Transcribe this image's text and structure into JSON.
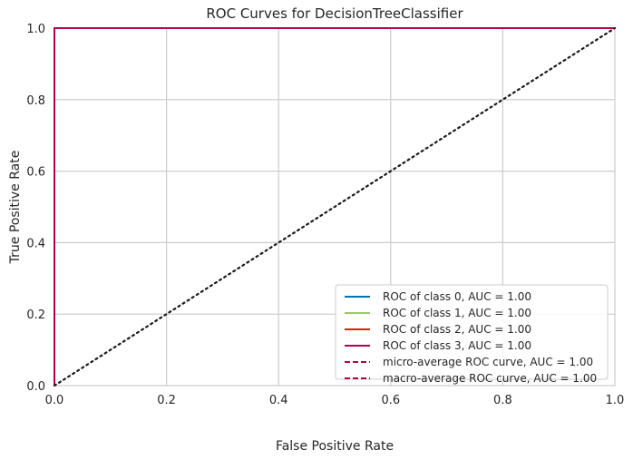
{
  "chart_data": {
    "type": "line",
    "title": "ROC Curves for DecisionTreeClassifier",
    "xlabel": "False Positive Rate",
    "ylabel": "True Positive Rate",
    "xlim": [
      0,
      1
    ],
    "ylim": [
      0,
      1
    ],
    "xticks": [
      "0.0",
      "0.2",
      "0.4",
      "0.6",
      "0.8",
      "1.0"
    ],
    "yticks": [
      "0.0",
      "0.2",
      "0.4",
      "0.6",
      "0.8",
      "1.0"
    ],
    "grid": true,
    "legend_position": "bottom-right",
    "series": [
      {
        "name": "ROC of class 0, AUC = 1.00",
        "color": "#0072b2",
        "dash": "solid",
        "x": [
          0,
          0,
          1
        ],
        "y": [
          0,
          1,
          1
        ]
      },
      {
        "name": "ROC of class 1, AUC = 1.00",
        "color": "#9bc96a",
        "dash": "solid",
        "x": [
          0,
          0,
          1
        ],
        "y": [
          0,
          1,
          1
        ]
      },
      {
        "name": "ROC of class 2, AUC = 1.00",
        "color": "#d62800",
        "dash": "solid",
        "x": [
          0,
          0,
          1
        ],
        "y": [
          0,
          1,
          1
        ]
      },
      {
        "name": "ROC of class 3, AUC = 1.00",
        "color": "#b7004f",
        "dash": "solid",
        "x": [
          0,
          0,
          1
        ],
        "y": [
          0,
          1,
          1
        ]
      },
      {
        "name": "micro-average ROC curve, AUC = 1.00",
        "color": "#b7004f",
        "dash": "dashed",
        "x": [
          0,
          0,
          1
        ],
        "y": [
          0,
          1,
          1
        ]
      },
      {
        "name": "macro-average ROC curve, AUC = 1.00",
        "color": "#b7004f",
        "dash": "dashed",
        "x": [
          0,
          0,
          1
        ],
        "y": [
          0,
          1,
          1
        ]
      }
    ],
    "reference_line": {
      "color": "#1a1a1a",
      "dash": "dotted",
      "x": [
        0,
        1
      ],
      "y": [
        0,
        1
      ]
    }
  }
}
